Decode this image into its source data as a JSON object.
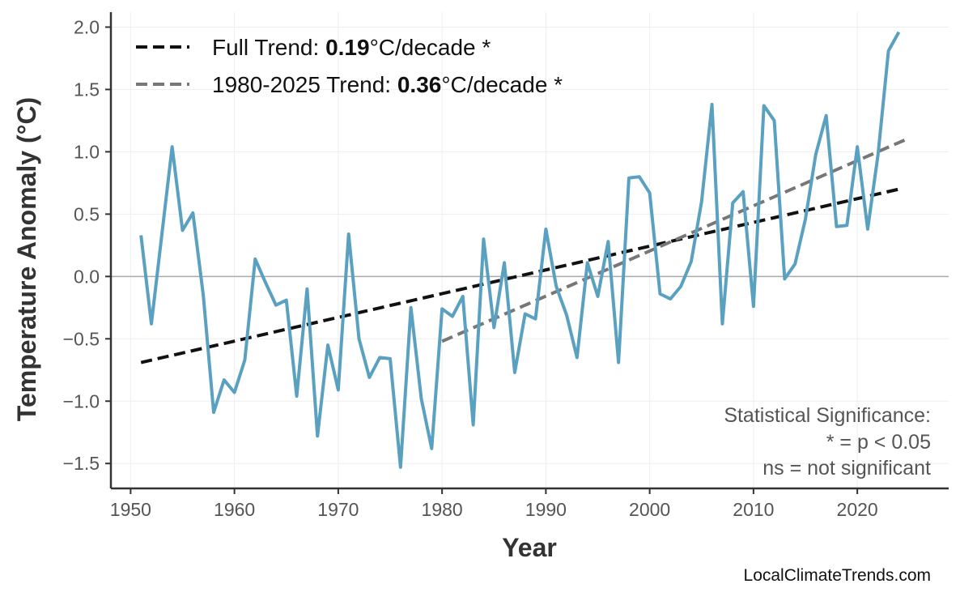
{
  "chart_data": {
    "type": "line",
    "title": "",
    "xlabel": "Year",
    "ylabel": "Temperature Anomaly (°C)",
    "xlim": [
      1948.1,
      2028.8
    ],
    "ylim": [
      -1.7,
      2.12
    ],
    "xticks": [
      1950,
      1960,
      1970,
      1980,
      1990,
      2000,
      2010,
      2020
    ],
    "yticks": [
      -1.5,
      -1.0,
      -0.5,
      0.0,
      0.5,
      1.0,
      1.5,
      2.0
    ],
    "ytick_labels": [
      "−1.5",
      "−1.0",
      "−0.5",
      "0.0",
      "0.5",
      "1.0",
      "1.5",
      "2.0"
    ],
    "grid": true,
    "zero_line": true,
    "colors": {
      "series": "#5aa0c0",
      "full_trend": "#111111",
      "recent_trend": "#777777",
      "axis": "#333333",
      "grid": "#eeeeee",
      "zero": "#aaaaaa"
    },
    "x": [
      1951,
      1952,
      1953,
      1954,
      1955,
      1956,
      1957,
      1958,
      1959,
      1960,
      1961,
      1962,
      1963,
      1964,
      1965,
      1966,
      1967,
      1968,
      1969,
      1970,
      1971,
      1972,
      1973,
      1974,
      1975,
      1976,
      1977,
      1978,
      1979,
      1980,
      1981,
      1982,
      1983,
      1984,
      1985,
      1986,
      1987,
      1988,
      1989,
      1990,
      1991,
      1992,
      1993,
      1994,
      1995,
      1996,
      1997,
      1998,
      1999,
      2000,
      2001,
      2002,
      2003,
      2004,
      2005,
      2006,
      2007,
      2008,
      2009,
      2010,
      2011,
      2012,
      2013,
      2014,
      2015,
      2016,
      2017,
      2018,
      2019,
      2020,
      2021,
      2022,
      2023,
      2024
    ],
    "series": [
      {
        "values": [
          0.33,
          -0.38,
          0.33,
          1.04,
          0.37,
          0.51,
          -0.15,
          -1.09,
          -0.83,
          -0.93,
          -0.67,
          0.14,
          -0.05,
          -0.23,
          -0.19,
          -0.96,
          -0.1,
          -1.28,
          -0.55,
          -0.91,
          0.34,
          -0.5,
          -0.81,
          -0.65,
          -0.66,
          -1.53,
          -0.25,
          -0.98,
          -1.38,
          -0.26,
          -0.32,
          -0.16,
          -1.19,
          0.3,
          -0.41,
          0.11,
          -0.77,
          -0.3,
          -0.34,
          0.38,
          -0.08,
          -0.31,
          -0.65,
          0.11,
          -0.16,
          0.28,
          -0.69,
          0.79,
          0.8,
          0.67,
          -0.14,
          -0.18,
          -0.08,
          0.12,
          0.6,
          1.38,
          -0.38,
          0.59,
          0.68,
          -0.24,
          1.37,
          1.25,
          -0.02,
          0.1,
          0.46,
          0.98,
          1.29,
          0.4,
          0.41,
          1.04,
          0.38,
          0.98,
          1.81,
          1.96
        ]
      }
    ],
    "trends": [
      {
        "name": "Full Trend",
        "label_prefix": "Full Trend: ",
        "value": "0.19",
        "unit": "°C/decade *",
        "x": [
          1951,
          2024
        ],
        "y": [
          -0.69,
          0.7
        ],
        "style": "dashed"
      },
      {
        "name": "1980-2025 Trend",
        "label_prefix": "1980-2025 Trend: ",
        "value": "0.36",
        "unit": "°C/decade *",
        "x": [
          1980,
          2025
        ],
        "y": [
          -0.52,
          1.11
        ],
        "style": "dashed"
      }
    ],
    "legend_position": "top-left",
    "annotation": [
      "Statistical Significance:",
      "* = p < 0.05",
      "ns = not significant"
    ]
  },
  "watermark": "LocalClimateTrends.com"
}
